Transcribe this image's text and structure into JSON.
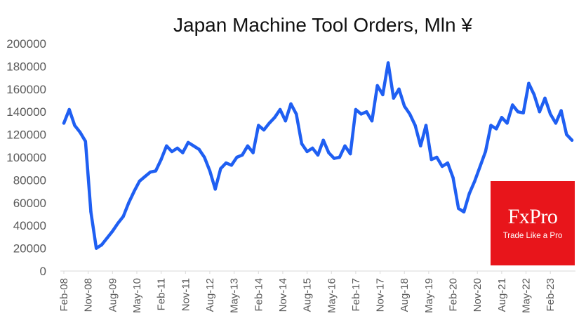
{
  "chart_data": {
    "type": "line",
    "title": "Japan Machine Tool Orders, Mln ¥",
    "xlabel": "",
    "ylabel": "",
    "ylim": [
      0,
      200000
    ],
    "yticks": [
      "200000",
      "180000",
      "160000",
      "140000",
      "120000",
      "100000",
      "80000",
      "60000",
      "40000",
      "20000",
      "0"
    ],
    "x_tick_labels": [
      "Feb-08",
      "Nov-08",
      "Aug-09",
      "May-10",
      "Feb-11",
      "Nov-11",
      "Aug-12",
      "May-13",
      "Feb-14",
      "Nov-14",
      "Aug-15",
      "May-16",
      "Feb-17",
      "Nov-17",
      "Aug-18",
      "May-19",
      "Feb-20",
      "Nov-20",
      "Aug-21",
      "May-22",
      "Feb-23"
    ],
    "grid": false,
    "legend": "none",
    "line_color": "#1f5ff2",
    "x": [
      "2008-02",
      "2008-04",
      "2008-06",
      "2008-08",
      "2008-10",
      "2008-12",
      "2009-02",
      "2009-04",
      "2009-06",
      "2009-08",
      "2009-10",
      "2009-12",
      "2010-02",
      "2010-04",
      "2010-06",
      "2010-08",
      "2010-10",
      "2010-12",
      "2011-02",
      "2011-04",
      "2011-06",
      "2011-08",
      "2011-10",
      "2011-12",
      "2012-02",
      "2012-04",
      "2012-06",
      "2012-08",
      "2012-10",
      "2012-12",
      "2013-02",
      "2013-04",
      "2013-06",
      "2013-08",
      "2013-10",
      "2013-12",
      "2014-02",
      "2014-04",
      "2014-06",
      "2014-08",
      "2014-10",
      "2014-12",
      "2015-02",
      "2015-04",
      "2015-06",
      "2015-08",
      "2015-10",
      "2015-12",
      "2016-02",
      "2016-04",
      "2016-06",
      "2016-08",
      "2016-10",
      "2016-12",
      "2017-02",
      "2017-04",
      "2017-06",
      "2017-08",
      "2017-10",
      "2017-12",
      "2018-02",
      "2018-04",
      "2018-06",
      "2018-08",
      "2018-10",
      "2018-12",
      "2019-02",
      "2019-04",
      "2019-06",
      "2019-08",
      "2019-10",
      "2019-12",
      "2020-02",
      "2020-04",
      "2020-06",
      "2020-08",
      "2020-10",
      "2020-12",
      "2021-02",
      "2021-04",
      "2021-06",
      "2021-08",
      "2021-10",
      "2021-12",
      "2022-02",
      "2022-04",
      "2022-06",
      "2022-08",
      "2022-10",
      "2022-12",
      "2023-02",
      "2023-04",
      "2023-06",
      "2023-08",
      "2023-10"
    ],
    "series": [
      {
        "values": [
          130000,
          142000,
          128000,
          122000,
          114000,
          52000,
          20000,
          23000,
          29000,
          35000,
          42000,
          48000,
          60000,
          70000,
          79000,
          83000,
          87000,
          88000,
          98000,
          110000,
          105000,
          108000,
          104000,
          113000,
          110000,
          107000,
          100000,
          88000,
          72000,
          90000,
          95000,
          93000,
          100000,
          102000,
          110000,
          104000,
          128000,
          124000,
          130000,
          135000,
          142000,
          132000,
          147000,
          138000,
          112000,
          105000,
          108000,
          102000,
          115000,
          104000,
          99000,
          100000,
          110000,
          103000,
          142000,
          138000,
          140000,
          132000,
          163000,
          155000,
          183000,
          152000,
          160000,
          145000,
          138000,
          128000,
          110000,
          128000,
          98000,
          100000,
          92000,
          95000,
          82000,
          55000,
          52000,
          68000,
          79000,
          92000,
          105000,
          128000,
          125000,
          135000,
          130000,
          146000,
          140000,
          139000,
          165000,
          155000,
          140000,
          152000,
          138000,
          130000,
          141000,
          120000,
          115000
        ]
      }
    ]
  },
  "logo": {
    "name": "FxPro",
    "tagline": "Trade Like a Pro"
  }
}
